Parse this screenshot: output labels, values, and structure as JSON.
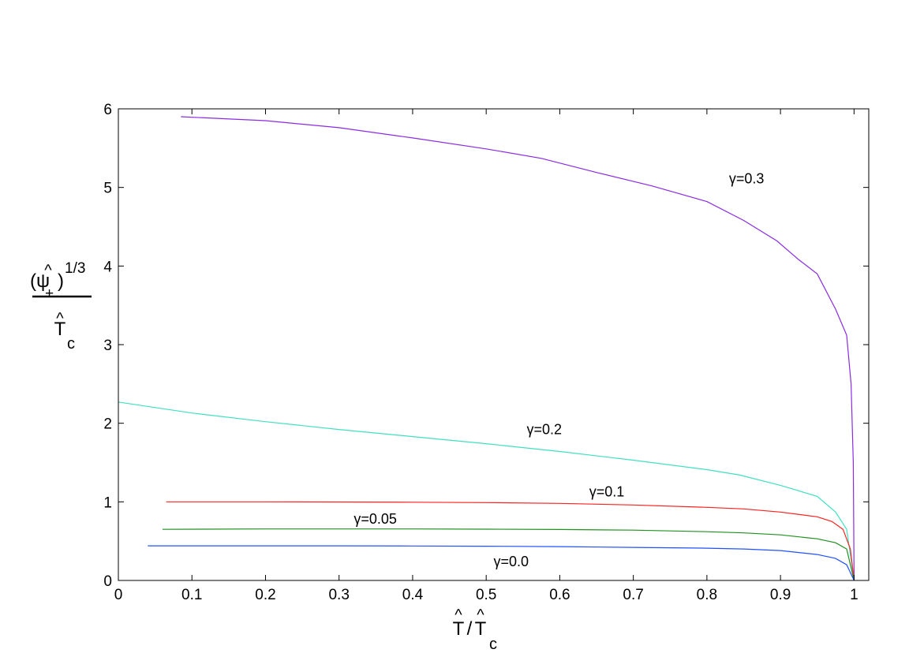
{
  "chart_data": {
    "type": "line",
    "xlim": [
      0,
      1.02
    ],
    "ylim": [
      0,
      6
    ],
    "grid": false,
    "x_ticks": [
      "0",
      "0.1",
      "0.2",
      "0.3",
      "0.4",
      "0.5",
      "0.6",
      "0.7",
      "0.8",
      "0.9",
      "1"
    ],
    "y_ticks": [
      "0",
      "1",
      "2",
      "3",
      "4",
      "5",
      "6"
    ],
    "xlabel": {
      "numerator": "T",
      "denominator": "T",
      "subscript": "c"
    },
    "ylabel": {
      "top": "(ψ",
      "top_subscript": "+",
      "top_superscript": "1/3",
      "bottom": "T",
      "bottom_subscript": "c"
    },
    "series": [
      {
        "name": "γ=0.3",
        "color": "#8a2be2",
        "label_at": [
          0.83,
          5.05
        ],
        "points": [
          [
            0.085,
            5.9
          ],
          [
            0.2,
            5.85
          ],
          [
            0.3,
            5.76
          ],
          [
            0.4,
            5.63
          ],
          [
            0.5,
            5.49
          ],
          [
            0.575,
            5.37
          ],
          [
            0.65,
            5.19
          ],
          [
            0.725,
            5.02
          ],
          [
            0.8,
            4.82
          ],
          [
            0.85,
            4.58
          ],
          [
            0.895,
            4.32
          ],
          [
            0.925,
            4.08
          ],
          [
            0.95,
            3.9
          ],
          [
            0.975,
            3.45
          ],
          [
            0.99,
            3.12
          ],
          [
            0.996,
            2.5
          ],
          [
            0.999,
            1.5
          ],
          [
            1.0,
            0.0
          ]
        ]
      },
      {
        "name": "γ=0.2",
        "color": "#40e0c0",
        "label_at": [
          0.555,
          1.86
        ],
        "points": [
          [
            0.0,
            2.27
          ],
          [
            0.1,
            2.13
          ],
          [
            0.2,
            2.02
          ],
          [
            0.3,
            1.92
          ],
          [
            0.4,
            1.83
          ],
          [
            0.5,
            1.74
          ],
          [
            0.6,
            1.64
          ],
          [
            0.7,
            1.53
          ],
          [
            0.8,
            1.41
          ],
          [
            0.845,
            1.34
          ],
          [
            0.9,
            1.21
          ],
          [
            0.95,
            1.07
          ],
          [
            0.975,
            0.87
          ],
          [
            0.99,
            0.65
          ],
          [
            1.0,
            0.0
          ]
        ]
      },
      {
        "name": "γ=0.1",
        "color": "#ff2020",
        "label_at": [
          0.64,
          1.07
        ],
        "points": [
          [
            0.065,
            1.0
          ],
          [
            0.2,
            1.0
          ],
          [
            0.3,
            0.998
          ],
          [
            0.4,
            0.995
          ],
          [
            0.5,
            0.99
          ],
          [
            0.6,
            0.98
          ],
          [
            0.7,
            0.96
          ],
          [
            0.8,
            0.93
          ],
          [
            0.85,
            0.91
          ],
          [
            0.9,
            0.87
          ],
          [
            0.95,
            0.81
          ],
          [
            0.97,
            0.75
          ],
          [
            0.985,
            0.65
          ],
          [
            0.995,
            0.4
          ],
          [
            1.0,
            0.0
          ]
        ]
      },
      {
        "name": "γ=0.05",
        "color": "#209020",
        "label_at": [
          0.32,
          0.72
        ],
        "points": [
          [
            0.06,
            0.65
          ],
          [
            0.2,
            0.655
          ],
          [
            0.3,
            0.655
          ],
          [
            0.4,
            0.655
          ],
          [
            0.5,
            0.652
          ],
          [
            0.6,
            0.648
          ],
          [
            0.7,
            0.64
          ],
          [
            0.8,
            0.62
          ],
          [
            0.85,
            0.605
          ],
          [
            0.9,
            0.58
          ],
          [
            0.95,
            0.53
          ],
          [
            0.975,
            0.48
          ],
          [
            0.99,
            0.4
          ],
          [
            1.0,
            0.0
          ]
        ]
      },
      {
        "name": "γ=0.0",
        "color": "#2050ff",
        "label_at": [
          0.51,
          0.18
        ],
        "points": [
          [
            0.04,
            0.44
          ],
          [
            0.2,
            0.44
          ],
          [
            0.3,
            0.44
          ],
          [
            0.4,
            0.438
          ],
          [
            0.5,
            0.435
          ],
          [
            0.6,
            0.43
          ],
          [
            0.7,
            0.42
          ],
          [
            0.8,
            0.41
          ],
          [
            0.85,
            0.4
          ],
          [
            0.9,
            0.38
          ],
          [
            0.95,
            0.33
          ],
          [
            0.975,
            0.28
          ],
          [
            0.99,
            0.2
          ],
          [
            1.0,
            0.0
          ]
        ]
      }
    ]
  }
}
